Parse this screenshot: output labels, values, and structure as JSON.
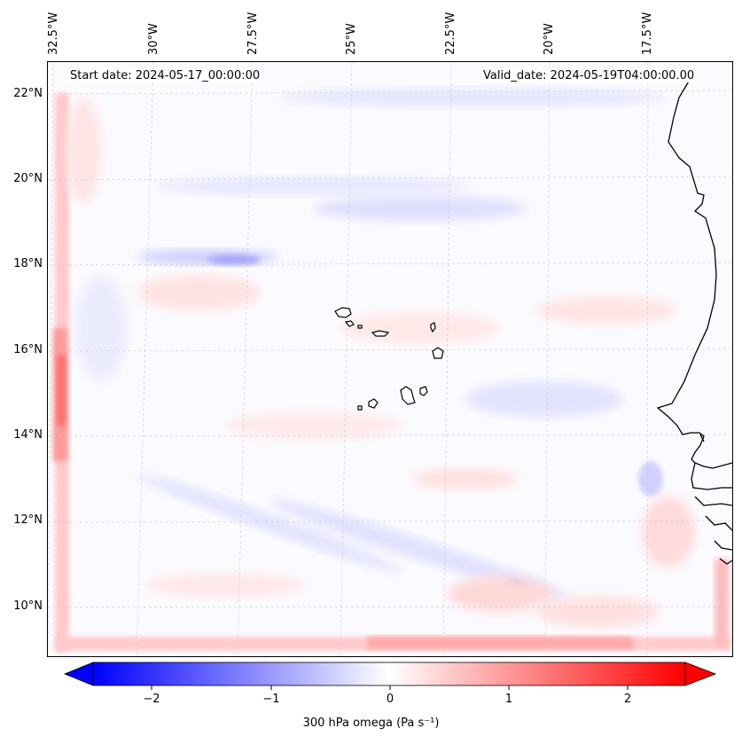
{
  "map": {
    "start_date": "Start date: 2024-05-17_00:00:00",
    "valid_date": "Valid_date: 2024-05-19T04:00:00.00",
    "lat_labels": [
      "22°N",
      "20°N",
      "18°N",
      "16°N",
      "14°N",
      "12°N",
      "10°N"
    ],
    "lon_labels": [
      "32.5°W",
      "30°W",
      "27.5°W",
      "25°W",
      "22.5°W",
      "20°W",
      "17.5°W"
    ],
    "field": "300 hPa omega",
    "gridlines": true,
    "coastline_color": "#000000"
  },
  "colorbar": {
    "label": "300 hPa omega (Pa s⁻¹)",
    "ticks": [
      "−2",
      "−1",
      "0",
      "1",
      "2"
    ],
    "range": [
      -2.7,
      2.7
    ],
    "extend": "both",
    "colormap": "bwr",
    "low_color": "#0000ff",
    "mid_color": "#ffffff",
    "high_color": "#ff0000"
  }
}
